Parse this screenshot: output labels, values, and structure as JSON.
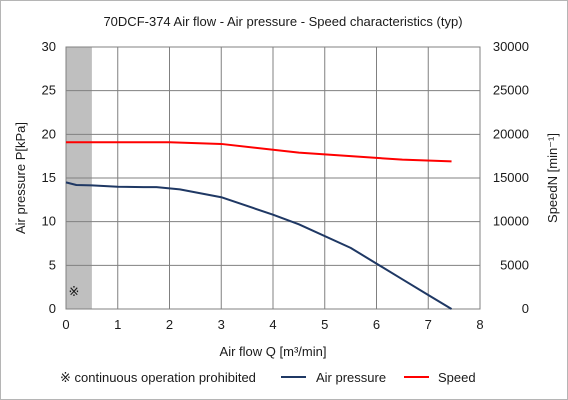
{
  "chart_data": {
    "type": "line",
    "title": "70DCF-374  Air flow - Air pressure - Speed characteristics (typ)",
    "xlabel": "Air flow Q  [m³/min]",
    "ylabel_left": "Air pressure P[kPa]",
    "ylabel_right": "SpeedN  [min⁻¹]",
    "xlim": [
      0,
      8
    ],
    "ylim_left": [
      0,
      30
    ],
    "ylim_right": [
      0,
      30000
    ],
    "x_ticks": [
      0,
      1,
      2,
      3,
      4,
      5,
      6,
      7,
      8
    ],
    "y_left_ticks": [
      0,
      5,
      10,
      15,
      20,
      25,
      30
    ],
    "y_right_ticks": [
      0,
      5000,
      10000,
      15000,
      20000,
      25000,
      30000
    ],
    "grid": true,
    "legend_position": "bottom",
    "prohibited_region": {
      "x_range": [
        0,
        0.5
      ],
      "symbol": "※",
      "legend_label": "※ continuous operation prohibited",
      "color": "#bfbfbf"
    },
    "series": [
      {
        "name": "Air  pressure",
        "axis": "left",
        "color": "#1f3864",
        "points": [
          [
            0,
            14.5
          ],
          [
            0.2,
            14.2
          ],
          [
            0.5,
            14.15
          ],
          [
            1.0,
            14.0
          ],
          [
            1.5,
            13.95
          ],
          [
            1.75,
            13.95
          ],
          [
            2.2,
            13.7
          ],
          [
            3.0,
            12.8
          ],
          [
            4.0,
            10.8
          ],
          [
            4.5,
            9.7
          ],
          [
            5.5,
            7.0
          ],
          [
            6.0,
            5.2
          ],
          [
            6.5,
            3.4
          ],
          [
            7.0,
            1.6
          ],
          [
            7.45,
            0
          ]
        ]
      },
      {
        "name": "Speed",
        "axis": "right",
        "color": "#ff0000",
        "points": [
          [
            0,
            19100
          ],
          [
            1.0,
            19100
          ],
          [
            2.0,
            19100
          ],
          [
            3.0,
            18900
          ],
          [
            4.5,
            17900
          ],
          [
            5.5,
            17500
          ],
          [
            6.5,
            17100
          ],
          [
            7.45,
            16900
          ]
        ]
      }
    ]
  }
}
